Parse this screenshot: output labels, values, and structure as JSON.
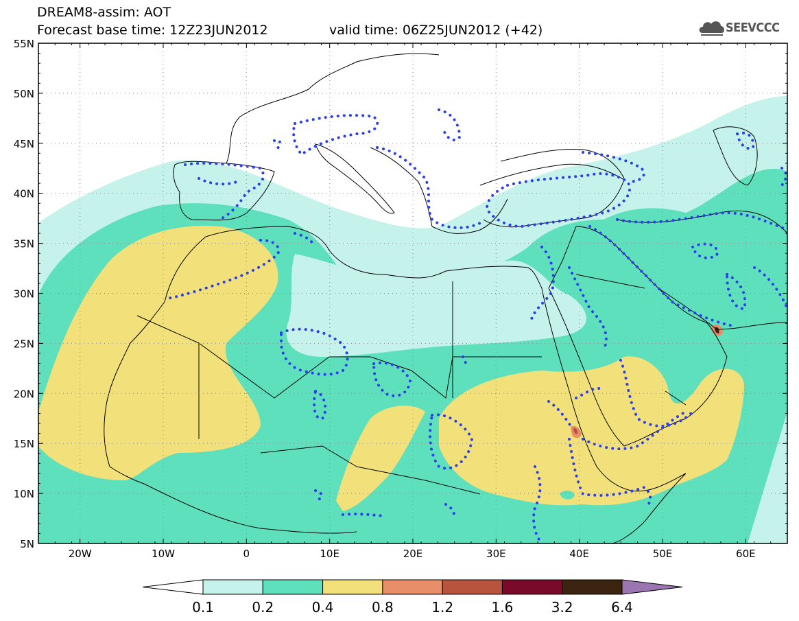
{
  "header": {
    "title": "DREAM8-assim: AOT",
    "base_time": "Forecast base time: 12Z23JUN2012",
    "valid_time": "valid time: 06Z25JUN2012 (+42)",
    "logo_text": "SEEVCCC"
  },
  "map": {
    "lon_range": [
      -25,
      65
    ],
    "lat_range": [
      5,
      55
    ],
    "lat_labels": [
      "55N",
      "50N",
      "45N",
      "40N",
      "35N",
      "30N",
      "25N",
      "20N",
      "15N",
      "10N",
      "5N"
    ],
    "lon_labels": [
      "20W",
      "10W",
      "0",
      "10E",
      "20E",
      "30E",
      "40E",
      "50E",
      "60E"
    ],
    "fill_colors": {
      "c01": "#c5f2ea",
      "c02": "#5fe0bd",
      "c04": "#f2e07a",
      "c08": "#e88f6a",
      "c12": "#b8533e"
    },
    "dotted_contour_color": "#2a3ef0"
  },
  "colorbar": {
    "labels": [
      "0.1",
      "0.2",
      "0.4",
      "0.8",
      "1.2",
      "1.6",
      "3.2",
      "6.4"
    ],
    "colors": [
      "#ffffff",
      "#c5f2ea",
      "#5fe0bd",
      "#f2e07a",
      "#e88f6a",
      "#b8533e",
      "#7a0a2a",
      "#3d2410",
      "#9a75b0"
    ]
  }
}
